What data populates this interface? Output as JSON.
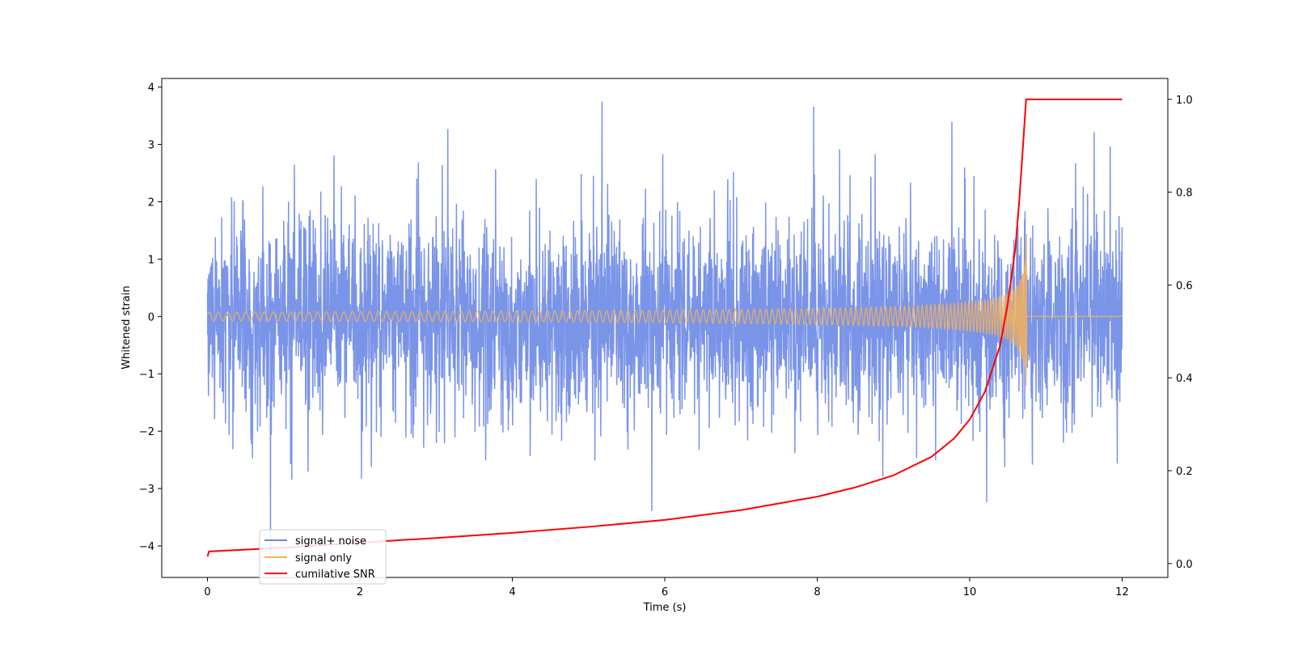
{
  "chart_data": {
    "type": "line",
    "title": "",
    "xlabel": "Time (s)",
    "ylabel": "Whitened strain",
    "y2label": "",
    "xlim": [
      -0.6,
      12.6
    ],
    "ylim": [
      -4.55,
      4.15
    ],
    "y2lim": [
      -0.03,
      1.045
    ],
    "grid": false,
    "legend_position": "lower-left",
    "xticks": [
      0,
      2,
      4,
      6,
      8,
      10,
      12
    ],
    "xtick_labels": [
      "0",
      "2",
      "4",
      "6",
      "8",
      "10",
      "12"
    ],
    "yticks": [
      -4,
      -3,
      -2,
      -1,
      0,
      1,
      2,
      3,
      4
    ],
    "ytick_labels": [
      "−4",
      "−3",
      "−2",
      "−1",
      "0",
      "1",
      "2",
      "3",
      "4"
    ],
    "y2ticks": [
      0.0,
      0.2,
      0.4,
      0.6,
      0.8,
      1.0
    ],
    "y2tick_labels": [
      "0.0",
      "0.2",
      "0.4",
      "0.6",
      "0.8",
      "1.0"
    ],
    "series": [
      {
        "name": "signal+ noise",
        "color": "#6b88e6",
        "axis": "left",
        "kind": "noisy-trace",
        "x_range": [
          0,
          12
        ],
        "noise_std": 0.85,
        "max": 3.75,
        "min": -4.15
      },
      {
        "name": "signal only",
        "color": "#f5b15a",
        "axis": "left",
        "kind": "chirp",
        "x_range": [
          0,
          12
        ],
        "merger_time": 10.75,
        "peak_amplitude": 1.65,
        "flat_value": 0.0
      },
      {
        "name": "cumilative SNR",
        "color": "#ff0000",
        "axis": "right",
        "kind": "line",
        "x": [
          0,
          0.02,
          1,
          2,
          3,
          4,
          5,
          6,
          7,
          8,
          8.5,
          9,
          9.5,
          9.8,
          10,
          10.2,
          10.4,
          10.5,
          10.6,
          10.65,
          10.7,
          10.72,
          10.74,
          12
        ],
        "y": [
          0.015,
          0.026,
          0.034,
          0.045,
          0.055,
          0.066,
          0.079,
          0.094,
          0.115,
          0.144,
          0.164,
          0.19,
          0.23,
          0.27,
          0.31,
          0.37,
          0.47,
          0.56,
          0.68,
          0.78,
          0.9,
          0.95,
          1.0,
          1.0
        ]
      }
    ]
  }
}
